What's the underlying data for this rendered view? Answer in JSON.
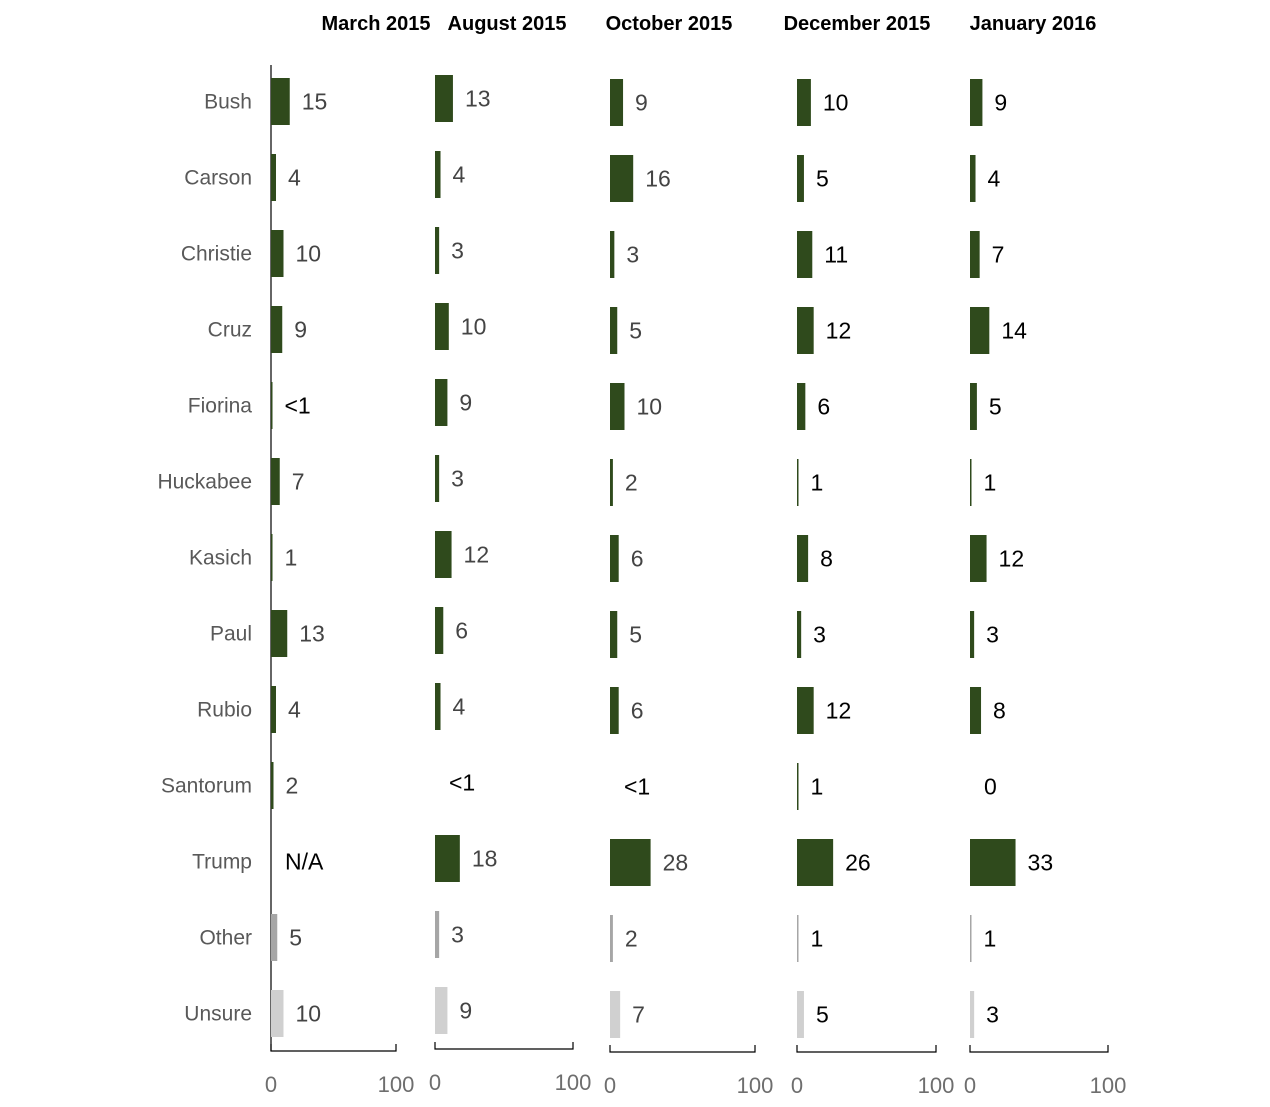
{
  "chart_data": {
    "type": "bar",
    "orientation": "horizontal",
    "xlim": [
      0,
      100
    ],
    "x_ticks": [
      "0",
      "100"
    ],
    "grid": false,
    "categories": [
      "Bush",
      "Carson",
      "Christie",
      "Cruz",
      "Fiorina",
      "Huckabee",
      "Kasich",
      "Paul",
      "Rubio",
      "Santorum",
      "Trump",
      "Other",
      "Unsure"
    ],
    "colors": {
      "candidate": "#2f4a1c",
      "other": "#a6a6a6",
      "unsure": "#d0d0d0"
    },
    "series": [
      {
        "name": "March 2015",
        "values": [
          15,
          4,
          10,
          9,
          0.4,
          7,
          1,
          13,
          4,
          2,
          null,
          5,
          10
        ],
        "labels": [
          "15",
          "4",
          "10",
          "9",
          "<1",
          "7",
          "1",
          "13",
          "4",
          "2",
          "N/A",
          "5",
          "10"
        ]
      },
      {
        "name": "August 2015",
        "values": [
          13,
          4,
          3,
          10,
          9,
          3,
          12,
          6,
          4,
          0,
          18,
          3,
          9
        ],
        "labels": [
          "13",
          "4",
          "3",
          "10",
          "9",
          "3",
          "12",
          "6",
          "4",
          "<1",
          "18",
          "3",
          "9"
        ]
      },
      {
        "name": "October 2015",
        "values": [
          9,
          16,
          3,
          5,
          10,
          2,
          6,
          5,
          6,
          0,
          28,
          2,
          7
        ],
        "labels": [
          "9",
          "16",
          "3",
          "5",
          "10",
          "2",
          "6",
          "5",
          "6",
          "<1",
          "28",
          "2",
          "7"
        ]
      },
      {
        "name": "December 2015",
        "values": [
          10,
          5,
          11,
          12,
          6,
          1,
          8,
          3,
          12,
          1,
          26,
          1,
          5
        ],
        "labels": [
          "10",
          "5",
          "11",
          "12",
          "6",
          "1",
          "8",
          "3",
          "12",
          "1",
          "26",
          "1",
          "5"
        ]
      },
      {
        "name": "January 2016",
        "values": [
          9,
          4,
          7,
          14,
          5,
          1,
          12,
          3,
          8,
          0,
          33,
          1,
          3
        ],
        "labels": [
          "9",
          "4",
          "7",
          "14",
          "5",
          "1",
          "12",
          "3",
          "8",
          "0",
          "33",
          "1",
          "3"
        ]
      }
    ]
  }
}
